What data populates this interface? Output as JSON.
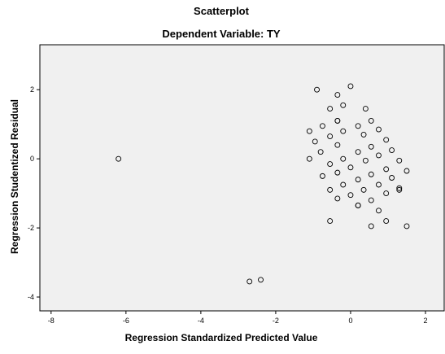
{
  "chart_data": {
    "type": "scatter",
    "title": "Scatterplot",
    "subtitle": "Dependent Variable: TY",
    "xlabel": "Regression Standardized Predicted Value",
    "ylabel": "Regression Studentized Residual",
    "xlim": [
      -8.3,
      2.5
    ],
    "ylim": [
      -4.4,
      3.3
    ],
    "xticks": [
      -8,
      -6,
      -4,
      -2,
      0,
      2
    ],
    "yticks": [
      -4,
      -2,
      0,
      2
    ],
    "xtick_labels": [
      "-8",
      "-6",
      "-4",
      "-2",
      "0",
      "2"
    ],
    "ytick_labels": [
      "-4",
      "-2",
      "0",
      "2"
    ],
    "grid": false,
    "colors": {
      "plot_background": "#f0f0f0",
      "marker": "#000000",
      "frame": "#000000"
    },
    "points": [
      [
        -6.2,
        0.0
      ],
      [
        -2.7,
        -3.55
      ],
      [
        -2.4,
        -3.5
      ],
      [
        -0.9,
        2.0
      ],
      [
        0.0,
        2.1
      ],
      [
        -0.35,
        1.85
      ],
      [
        -0.55,
        1.45
      ],
      [
        -0.2,
        1.55
      ],
      [
        0.4,
        1.45
      ],
      [
        -0.35,
        1.1
      ],
      [
        -0.35,
        1.1
      ],
      [
        0.55,
        1.1
      ],
      [
        -0.75,
        0.95
      ],
      [
        0.2,
        0.95
      ],
      [
        0.75,
        0.85
      ],
      [
        -1.1,
        0.8
      ],
      [
        -0.2,
        0.8
      ],
      [
        -0.55,
        0.65
      ],
      [
        0.35,
        0.7
      ],
      [
        -0.95,
        0.5
      ],
      [
        0.95,
        0.55
      ],
      [
        -0.35,
        0.4
      ],
      [
        0.55,
        0.35
      ],
      [
        -0.8,
        0.2
      ],
      [
        0.2,
        0.2
      ],
      [
        1.1,
        0.25
      ],
      [
        -0.2,
        0.0
      ],
      [
        -1.1,
        0.0
      ],
      [
        0.75,
        0.1
      ],
      [
        -0.55,
        -0.15
      ],
      [
        0.4,
        -0.05
      ],
      [
        1.3,
        -0.05
      ],
      [
        0.0,
        -0.25
      ],
      [
        -0.35,
        -0.4
      ],
      [
        0.95,
        -0.3
      ],
      [
        0.55,
        -0.45
      ],
      [
        1.5,
        -0.35
      ],
      [
        1.1,
        -0.55
      ],
      [
        -0.75,
        -0.5
      ],
      [
        0.2,
        -0.6
      ],
      [
        -0.2,
        -0.75
      ],
      [
        0.75,
        -0.75
      ],
      [
        1.3,
        -0.85
      ],
      [
        1.3,
        -0.9
      ],
      [
        -0.55,
        -0.9
      ],
      [
        0.35,
        -0.9
      ],
      [
        0.0,
        -1.05
      ],
      [
        0.95,
        -1.0
      ],
      [
        -0.35,
        -1.15
      ],
      [
        0.55,
        -1.2
      ],
      [
        0.2,
        -1.35
      ],
      [
        0.75,
        -1.5
      ],
      [
        -0.55,
        -1.8
      ],
      [
        0.95,
        -1.8
      ],
      [
        0.55,
        -1.95
      ],
      [
        1.5,
        -1.95
      ],
      [
        0.2,
        -1.35
      ]
    ]
  }
}
